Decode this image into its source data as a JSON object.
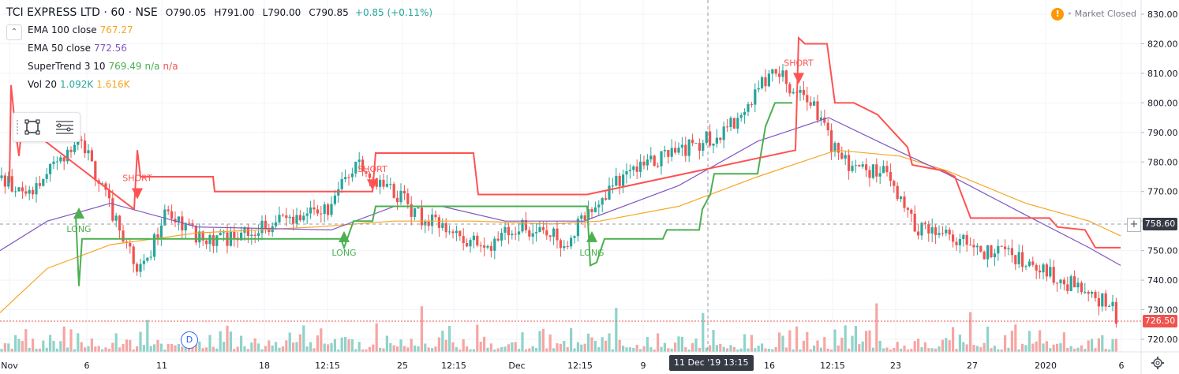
{
  "header": {
    "symbol": "TCI EXPRESS LTD · 60 · NSE",
    "open": "O790.05",
    "high": "H791.00",
    "low": "L790.00",
    "close": "C790.85",
    "change": "+0.85 (+0.11%)"
  },
  "indicators": [
    {
      "label": "EMA 100 close",
      "values": [
        "767.27"
      ],
      "colors": [
        "#f5a623"
      ]
    },
    {
      "label": "EMA 50 close",
      "values": [
        "772.56"
      ],
      "colors": [
        "#7e57c2"
      ]
    },
    {
      "label": "SuperTrend 3 10",
      "values": [
        "769.49",
        "n/a",
        "n/a"
      ],
      "colors": [
        "#4caf50",
        "#4caf50",
        "#ef5350"
      ]
    },
    {
      "label": "Vol 20",
      "values": [
        "1.092K",
        "1.616K"
      ],
      "colors": [
        "#26a69a",
        "#f5a623"
      ]
    }
  ],
  "market_status": "Market Closed",
  "market_icon": "!",
  "price_scale": {
    "ticks": [
      "830.00",
      "820.00",
      "810.00",
      "800.00",
      "790.00",
      "780.00",
      "770.00",
      "760.00",
      "750.00",
      "740.00",
      "730.00",
      "720.00"
    ]
  },
  "crosshair_price": "758.60",
  "last_price": "726.50",
  "crosshair_time": "11 Dec '19   13:15",
  "dividend_marker": "D",
  "colors": {
    "up": "#26a69a",
    "down": "#ef5350",
    "ema100": "#f5a623",
    "ema50": "#7e57c2",
    "st_up": "#4caf50",
    "st_down": "#ff5252",
    "vol_up": "#8fd3c9",
    "vol_down": "#f6a6a4"
  },
  "chart_data": {
    "type": "candlestick",
    "title": "TCI EXPRESS LTD · 60 · NSE",
    "y_range": [
      717,
      832
    ],
    "x_ticks": [
      "Nov",
      "6",
      "11",
      "18",
      "12:15",
      "25",
      "12:15",
      "Dec",
      "12:15",
      "9",
      "11 Dec '19",
      "16",
      "12:15",
      "23",
      "27",
      "2020",
      "6"
    ],
    "series": [
      {
        "name": "EMA 100 close",
        "points": [
          [
            0,
            729
          ],
          [
            60,
            744
          ],
          [
            140,
            752
          ],
          [
            250,
            756
          ],
          [
            400,
            758
          ],
          [
            500,
            760
          ],
          [
            600,
            760
          ],
          [
            700,
            759
          ],
          [
            760,
            760
          ],
          [
            860,
            765
          ],
          [
            960,
            775
          ],
          [
            1060,
            784
          ],
          [
            1140,
            782
          ],
          [
            1200,
            777
          ],
          [
            1300,
            766
          ],
          [
            1380,
            760
          ],
          [
            1420,
            755
          ]
        ]
      },
      {
        "name": "EMA 50 close",
        "points": [
          [
            0,
            750
          ],
          [
            60,
            760
          ],
          [
            140,
            766
          ],
          [
            250,
            758
          ],
          [
            420,
            757
          ],
          [
            500,
            765
          ],
          [
            560,
            765
          ],
          [
            640,
            760
          ],
          [
            740,
            760
          ],
          [
            860,
            772
          ],
          [
            960,
            787
          ],
          [
            1050,
            795
          ],
          [
            1120,
            786
          ],
          [
            1200,
            776
          ],
          [
            1300,
            762
          ],
          [
            1380,
            751
          ],
          [
            1420,
            745
          ]
        ]
      },
      {
        "name": "SuperTrend 3 10 (up)",
        "points": [
          [
            96,
            762
          ],
          [
            100,
            738
          ],
          [
            104,
            754
          ],
          [
            170,
            754
          ],
          [
            432,
            754
          ],
          [
            436,
            751
          ],
          [
            448,
            760
          ],
          [
            472,
            760
          ],
          [
            476,
            765
          ],
          [
            744,
            765
          ],
          [
            748,
            745
          ],
          [
            756,
            746
          ],
          [
            766,
            754
          ],
          [
            840,
            754
          ],
          [
            845,
            757
          ],
          [
            886,
            757
          ],
          [
            890,
            764
          ],
          [
            900,
            769
          ],
          [
            905,
            776
          ],
          [
            960,
            776
          ],
          [
            970,
            792
          ],
          [
            982,
            800
          ],
          [
            1004,
            800
          ]
        ]
      },
      {
        "name": "SuperTrend 3 10 (down)",
        "points": [
          [
            12,
            773
          ],
          [
            14,
            806
          ],
          [
            20,
            790
          ],
          [
            24,
            782
          ],
          [
            28,
            793
          ],
          [
            170,
            764
          ],
          [
            174,
            784
          ],
          [
            178,
            775
          ],
          [
            270,
            775
          ],
          [
            272,
            770
          ],
          [
            432,
            770
          ],
          [
            472,
            770
          ],
          [
            476,
            783
          ],
          [
            600,
            783
          ],
          [
            606,
            769
          ],
          [
            744,
            769
          ],
          [
            1008,
            784
          ],
          [
            1012,
            822
          ],
          [
            1020,
            820
          ],
          [
            1048,
            820
          ],
          [
            1058,
            800
          ],
          [
            1082,
            800
          ],
          [
            1112,
            796
          ],
          [
            1150,
            785
          ],
          [
            1156,
            779
          ],
          [
            1196,
            777
          ],
          [
            1210,
            775
          ],
          [
            1230,
            761
          ],
          [
            1330,
            761
          ],
          [
            1340,
            758
          ],
          [
            1375,
            757
          ],
          [
            1388,
            751
          ],
          [
            1420,
            751
          ]
        ]
      }
    ],
    "signals": [
      {
        "label": "LONG",
        "price": 763
      },
      {
        "label": "SHORT",
        "price": 769
      },
      {
        "label": "LONG",
        "price": 755
      },
      {
        "label": "SHORT",
        "price": 772
      },
      {
        "label": "LONG",
        "price": 755
      },
      {
        "label": "SHORT",
        "price": 808
      }
    ],
    "volume": "Vol 20"
  }
}
